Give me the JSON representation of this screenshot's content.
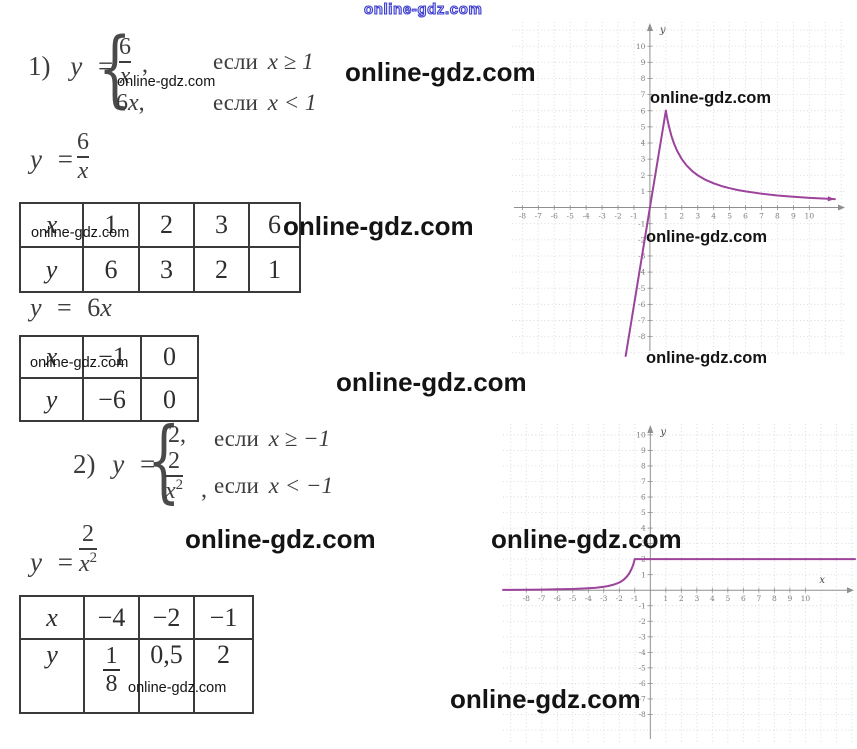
{
  "watermark_text": "online-gdz.com",
  "brace": "{",
  "p1": {
    "index": "1)",
    "var": "y",
    "eq": "=",
    "case1": {
      "num": "6",
      "den": "x",
      "comma": ",",
      "if_word": "если",
      "cond": "x ≥ 1"
    },
    "case2": {
      "coeff": "6",
      "var": "x",
      "comma": ",",
      "if_word": "если",
      "cond": "x < 1"
    },
    "formula_frac": {
      "lhs": "y",
      "eq": "=",
      "num": "6",
      "den": "x"
    },
    "table_frac": {
      "rows": [
        [
          "x",
          "1",
          "2",
          "3",
          "6"
        ],
        [
          "y",
          "6",
          "3",
          "2",
          "1"
        ]
      ]
    },
    "formula_lin": {
      "lhs": "y",
      "eq": "=",
      "coeff": "6",
      "var": "x"
    },
    "table_lin": {
      "rows": [
        [
          "x",
          "−1",
          "0"
        ],
        [
          "y",
          "−6",
          "0"
        ]
      ]
    }
  },
  "p2": {
    "index": "2)",
    "var": "y",
    "eq": "=",
    "case1": {
      "expr": "2",
      "comma": ",",
      "if_word": "если",
      "cond": "x ≥ −1"
    },
    "case2": {
      "num": "2",
      "den_base": "x",
      "den_sup": "2",
      "comma": ",",
      "if_word": "если",
      "cond": "x < −1"
    },
    "formula_frac": {
      "lhs": "y",
      "eq": "=",
      "num": "2",
      "den_base": "x",
      "den_sup": "2"
    },
    "table": {
      "header_row": [
        "x",
        "−4",
        "−2",
        "−1"
      ],
      "value_row_label": "y",
      "frac_cell": {
        "num": "1",
        "den": "8"
      },
      "cells": [
        "0,5",
        "2"
      ]
    }
  },
  "chart_data": [
    {
      "type": "line",
      "title": "",
      "xlabel": "",
      "ylabel": "y",
      "xlim": [
        -8.65,
        12.3
      ],
      "ylim": [
        -9.2,
        11.5
      ],
      "x_ticks": [
        -8,
        10
      ],
      "y_ticks": [
        -8,
        10
      ],
      "grid": true,
      "legend": "none",
      "series": [
        {
          "name": "y = 6x (x < 1)",
          "color": "#9c439c",
          "arrow_end": false,
          "points": [
            [
              -1.52,
              -9.2
            ],
            [
              0,
              0
            ],
            [
              1,
              6
            ]
          ]
        },
        {
          "name": "y = 6/x (x ≥ 1)",
          "color": "#9c439c",
          "arrow_end": true,
          "points": [
            [
              1,
              6
            ],
            [
              1.1,
              5.45
            ],
            [
              1.2,
              5
            ],
            [
              1.35,
              4.44
            ],
            [
              1.5,
              4
            ],
            [
              1.7,
              3.53
            ],
            [
              2,
              3
            ],
            [
              2.3,
              2.61
            ],
            [
              2.7,
              2.22
            ],
            [
              3,
              2
            ],
            [
              3.5,
              1.71
            ],
            [
              4,
              1.5
            ],
            [
              4.5,
              1.33
            ],
            [
              5,
              1.2
            ],
            [
              5.5,
              1.09
            ],
            [
              6,
              1
            ],
            [
              7,
              0.86
            ],
            [
              8,
              0.75
            ],
            [
              9,
              0.67
            ],
            [
              10,
              0.6
            ],
            [
              11,
              0.55
            ],
            [
              11.6,
              0.52
            ]
          ]
        }
      ]
    },
    {
      "type": "line",
      "title": "",
      "xlabel": "x",
      "ylabel": "y",
      "xlim": [
        -9.5,
        13.2
      ],
      "ylim": [
        -9.9,
        10.7
      ],
      "x_ticks": [
        -8,
        10
      ],
      "y_ticks": [
        -8,
        10
      ],
      "grid": true,
      "legend": "none",
      "series": [
        {
          "name": "y = 2/x² (x < −1)",
          "color": "#9c439c",
          "arrow_end": false,
          "points": [
            [
              -9.5,
              0.02
            ],
            [
              -8,
              0.03
            ],
            [
              -7,
              0.04
            ],
            [
              -6,
              0.06
            ],
            [
              -5,
              0.08
            ],
            [
              -4.5,
              0.1
            ],
            [
              -4,
              0.13
            ],
            [
              -3.5,
              0.16
            ],
            [
              -3,
              0.22
            ],
            [
              -2.7,
              0.27
            ],
            [
              -2.4,
              0.35
            ],
            [
              -2.1,
              0.45
            ],
            [
              -1.9,
              0.55
            ],
            [
              -1.7,
              0.69
            ],
            [
              -1.5,
              0.89
            ],
            [
              -1.35,
              1.1
            ],
            [
              -1.2,
              1.39
            ],
            [
              -1.1,
              1.65
            ],
            [
              -1,
              2
            ]
          ]
        },
        {
          "name": "y = 2 (x ≥ −1)",
          "color": "#9c439c",
          "arrow_end": false,
          "points": [
            [
              -1,
              2
            ],
            [
              13.2,
              2
            ]
          ]
        }
      ]
    }
  ]
}
